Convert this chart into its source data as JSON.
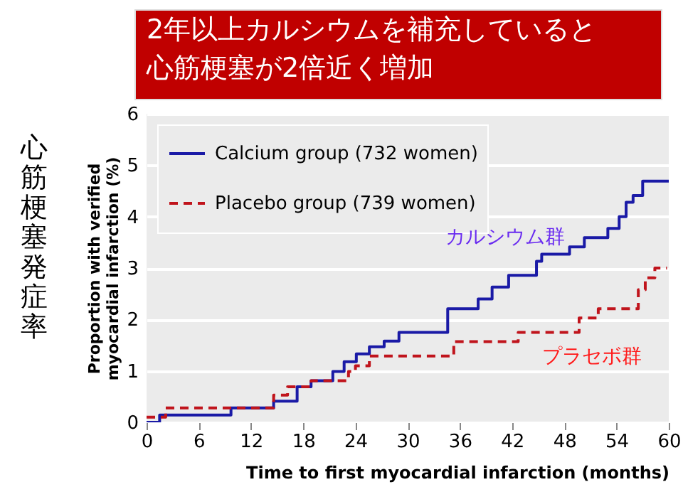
{
  "chart_data": {
    "type": "step",
    "title": "2年以上カルシウムを補充していると心筋梗塞が2倍近く増加",
    "xlabel": "Time to first myocardial infarction (months)",
    "ylabel": "Proportion with verified\nmyocardial infarction (%)",
    "annotations": [
      "心筋梗塞発症率",
      "カルシウム群",
      "プラセボ群"
    ],
    "xlim": [
      0,
      60
    ],
    "xticks": [
      0,
      6,
      12,
      18,
      24,
      30,
      36,
      42,
      48,
      54,
      60
    ],
    "ylim": [
      0,
      6
    ],
    "yticks": [
      0,
      1,
      2,
      3,
      4,
      5,
      6
    ],
    "grid": "y",
    "legend": "top left",
    "series": [
      {
        "name": "Calcium group (732 women)",
        "color": "#1a1aa6",
        "line_style": "solid",
        "x": [
          0,
          1.5,
          9.7,
          14.6,
          17.3,
          18.9,
          21.4,
          22.7,
          24.1,
          25.6,
          27.3,
          29,
          34.6,
          38.1,
          39.7,
          41.6,
          44.8,
          45.4,
          48.6,
          50.3,
          53,
          54.3,
          55.1,
          55.9,
          57,
          60
        ],
        "values": [
          0,
          0.14,
          0.28,
          0.41,
          0.69,
          0.81,
          0.99,
          1.18,
          1.33,
          1.47,
          1.58,
          1.75,
          2.21,
          2.4,
          2.63,
          2.86,
          3.13,
          3.27,
          3.41,
          3.59,
          3.77,
          4.0,
          4.28,
          4.41,
          4.69,
          4.69
        ]
      },
      {
        "name": "Placebo group (739 women)",
        "color": "#c0141c",
        "line_style": "dashed",
        "x": [
          0,
          2.2,
          14.6,
          16.2,
          18.9,
          23.2,
          24,
          25.6,
          35.3,
          42.7,
          49.7,
          51.9,
          56.5,
          57.3,
          58.4,
          59.8
        ],
        "values": [
          0.1,
          0.28,
          0.53,
          0.69,
          0.81,
          0.99,
          1.1,
          1.29,
          1.57,
          1.75,
          2.03,
          2.21,
          2.58,
          2.81,
          3.0,
          3.0
        ]
      }
    ]
  }
}
